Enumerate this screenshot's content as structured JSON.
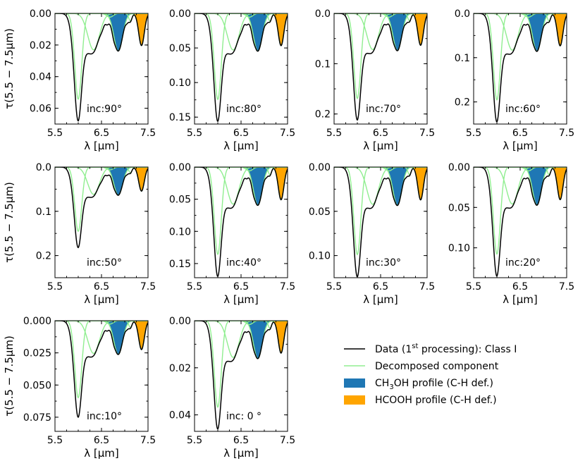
{
  "figure": {
    "y_axis_label": "τ(5.5 − 7.5μm)",
    "x_axis_label": "λ [μm]",
    "x_ticks": [
      "5.5",
      "6.5",
      "7.5"
    ],
    "legend": [
      {
        "kind": "line",
        "color": "#000000",
        "text": "Data (1st processing): Class I",
        "base": "Data (1",
        "sup": "st",
        "rest": " processing): Class I"
      },
      {
        "kind": "line",
        "color": "#90ee90",
        "text": "Decomposed component"
      },
      {
        "kind": "patch",
        "color": "#1f77b4",
        "text": "CH3OH profile (C-H def.)",
        "base": "CH",
        "sub": "3",
        "rest": "OH profile (C-H def.)"
      },
      {
        "kind": "patch",
        "color": "#ffa500",
        "text": "HCOOH profile (C-H def.)"
      }
    ],
    "colors": {
      "data": "#000000",
      "component": "#90ee90",
      "ch3oh": "#1f77b4",
      "hcooh": "#ffa500"
    }
  },
  "chart_data": [
    {
      "type": "line",
      "panel": "inc:90°",
      "annotation": "inc:90°",
      "xlim": [
        5.5,
        7.5
      ],
      "ylim": [
        0.07,
        0.0
      ],
      "y_inverted": true,
      "y_ticks": [
        "0.00",
        "0.02",
        "0.04",
        "0.06"
      ],
      "y_tick_values": [
        0.0,
        0.02,
        0.04,
        0.06
      ],
      "peak_depth": 0.068,
      "ch3oh_depth": 0.024,
      "hcooh_depth": 0.022
    },
    {
      "type": "line",
      "panel": "inc:80°",
      "annotation": "inc:80°",
      "xlim": [
        5.5,
        7.5
      ],
      "ylim": [
        0.16,
        0.0
      ],
      "y_inverted": true,
      "y_ticks": [
        "0.00",
        "0.05",
        "0.10",
        "0.15"
      ],
      "y_tick_values": [
        0.0,
        0.05,
        0.1,
        0.15
      ],
      "peak_depth": 0.156,
      "ch3oh_depth": 0.055,
      "hcooh_depth": 0.05
    },
    {
      "type": "line",
      "panel": "inc:70°",
      "annotation": "inc:70°",
      "xlim": [
        5.5,
        7.5
      ],
      "ylim": [
        0.22,
        0.0
      ],
      "y_inverted": true,
      "y_ticks": [
        "0.0",
        "0.1",
        "0.2"
      ],
      "y_tick_values": [
        0.0,
        0.1,
        0.2
      ],
      "peak_depth": 0.212,
      "ch3oh_depth": 0.075,
      "hcooh_depth": 0.069
    },
    {
      "type": "line",
      "panel": "inc:60°",
      "annotation": "inc:60°",
      "xlim": [
        5.5,
        7.5
      ],
      "ylim": [
        0.25,
        0.0
      ],
      "y_inverted": true,
      "y_ticks": [
        "0.0",
        "0.1",
        "0.2"
      ],
      "y_tick_values": [
        0.0,
        0.1,
        0.2
      ],
      "peak_depth": 0.245,
      "ch3oh_depth": 0.085,
      "hcooh_depth": 0.078
    },
    {
      "type": "line",
      "panel": "inc:50°",
      "annotation": "inc:50°",
      "xlim": [
        5.5,
        7.5
      ],
      "ylim": [
        0.25,
        0.0
      ],
      "y_inverted": true,
      "y_ticks": [
        "0.0",
        "0.1",
        "0.2"
      ],
      "y_tick_values": [
        0.0,
        0.1,
        0.2
      ],
      "peak_depth": 0.182,
      "ch3oh_depth": 0.064,
      "hcooh_depth": 0.058
    },
    {
      "type": "line",
      "panel": "inc:40°",
      "annotation": "inc:40°",
      "xlim": [
        5.5,
        7.5
      ],
      "ylim": [
        0.172,
        0.0
      ],
      "y_inverted": true,
      "y_ticks": [
        "0.00",
        "0.05",
        "0.10",
        "0.15"
      ],
      "y_tick_values": [
        0.0,
        0.05,
        0.1,
        0.15
      ],
      "peak_depth": 0.17,
      "ch3oh_depth": 0.06,
      "hcooh_depth": 0.055
    },
    {
      "type": "line",
      "panel": "inc:30°",
      "annotation": "inc:30°",
      "xlim": [
        5.5,
        7.5
      ],
      "ylim": [
        0.125,
        0.0
      ],
      "y_inverted": true,
      "y_ticks": [
        "0.00",
        "0.05",
        "0.10"
      ],
      "y_tick_values": [
        0.0,
        0.05,
        0.1
      ],
      "peak_depth": 0.124,
      "ch3oh_depth": 0.044,
      "hcooh_depth": 0.04
    },
    {
      "type": "line",
      "panel": "inc:20°",
      "annotation": "inc:20°",
      "xlim": [
        5.5,
        7.5
      ],
      "ylim": [
        0.137,
        0.0
      ],
      "y_inverted": true,
      "y_ticks": [
        "0.00",
        "0.05",
        "0.10"
      ],
      "y_tick_values": [
        0.0,
        0.05,
        0.1
      ],
      "peak_depth": 0.135,
      "ch3oh_depth": 0.047,
      "hcooh_depth": 0.043
    },
    {
      "type": "line",
      "panel": "inc:10°",
      "annotation": "inc:10°",
      "xlim": [
        5.5,
        7.5
      ],
      "ylim": [
        0.086,
        0.0
      ],
      "y_inverted": true,
      "y_ticks": [
        "0.000",
        "0.025",
        "0.050",
        "0.075"
      ],
      "y_tick_values": [
        0.0,
        0.025,
        0.05,
        0.075
      ],
      "peak_depth": 0.075,
      "ch3oh_depth": 0.026,
      "hcooh_depth": 0.024
    },
    {
      "type": "line",
      "panel": "inc: 0°",
      "annotation": "inc: 0 °",
      "xlim": [
        5.5,
        7.5
      ],
      "ylim": [
        0.047,
        0.0
      ],
      "y_inverted": true,
      "y_ticks": [
        "0.00",
        "0.02",
        "0.04"
      ],
      "y_tick_values": [
        0.0,
        0.02,
        0.04
      ],
      "peak_depth": 0.046,
      "ch3oh_depth": 0.016,
      "hcooh_depth": 0.0145
    }
  ]
}
